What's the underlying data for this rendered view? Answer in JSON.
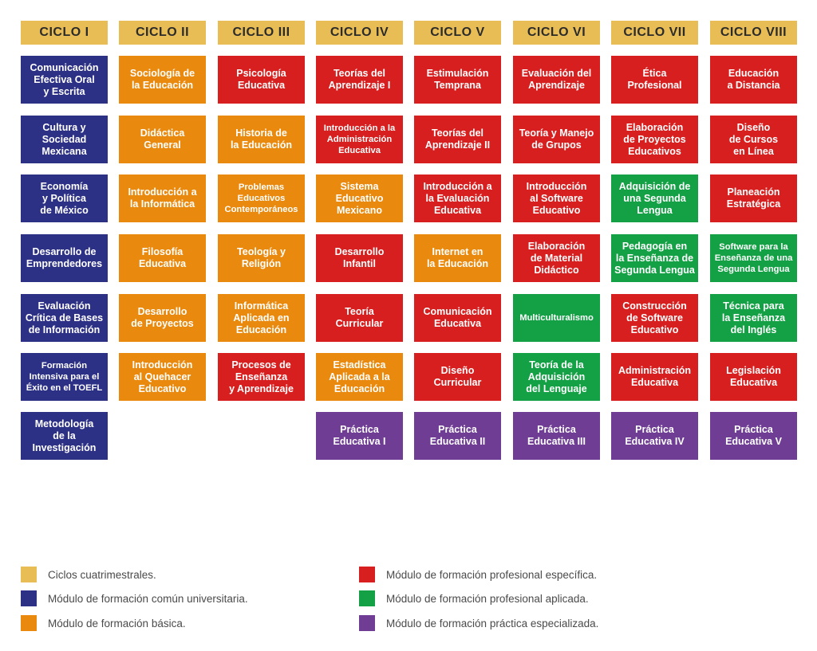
{
  "colors": {
    "ciclos": "#E9BD55",
    "comun": "#2D3185",
    "basica": "#E98A0E",
    "especifica": "#D81F1F",
    "aplicada": "#14A045",
    "practica": "#6F3E94"
  },
  "columns": [
    {
      "header": "CICLO I",
      "cells": [
        {
          "text": "Comunicación\nEfectiva Oral\ny Escrita",
          "module": "comun"
        },
        {
          "text": "Cultura y\nSociedad\nMexicana",
          "module": "comun"
        },
        {
          "text": "Economía\ny Política\nde México",
          "module": "comun"
        },
        {
          "text": "Desarrollo de\nEmprendedores",
          "module": "comun"
        },
        {
          "text": "Evaluación\nCrítica de Bases\nde Información",
          "module": "comun"
        },
        {
          "text": "Formación\nIntensiva para el\nÉxito en el TOEFL",
          "module": "comun",
          "small": true
        },
        {
          "text": "Metodología\nde la\nInvestigación",
          "module": "comun"
        }
      ]
    },
    {
      "header": "CICLO II",
      "cells": [
        {
          "text": "Sociología de\nla Educación",
          "module": "basica"
        },
        {
          "text": "Didáctica\nGeneral",
          "module": "basica"
        },
        {
          "text": "Introducción a\nla Informática",
          "module": "basica"
        },
        {
          "text": "Filosofía\nEducativa",
          "module": "basica"
        },
        {
          "text": "Desarrollo\nde Proyectos",
          "module": "basica"
        },
        {
          "text": "Introducción\nal Quehacer\nEducativo",
          "module": "basica"
        }
      ]
    },
    {
      "header": "CICLO III",
      "cells": [
        {
          "text": "Psicología\nEducativa",
          "module": "especifica"
        },
        {
          "text": "Historia de\nla Educación",
          "module": "basica"
        },
        {
          "text": "Problemas\nEducativos\nContemporáneos",
          "module": "basica",
          "small": true
        },
        {
          "text": "Teología y\nReligión",
          "module": "basica"
        },
        {
          "text": "Informática\nAplicada en\nEducación",
          "module": "basica"
        },
        {
          "text": "Procesos de\nEnseñanza\ny Aprendizaje",
          "module": "especifica"
        }
      ]
    },
    {
      "header": "CICLO IV",
      "cells": [
        {
          "text": "Teorías del\nAprendizaje I",
          "module": "especifica"
        },
        {
          "text": "Introducción a la\nAdministración\nEducativa",
          "module": "especifica",
          "small": true
        },
        {
          "text": "Sistema\nEducativo\nMexicano",
          "module": "basica"
        },
        {
          "text": "Desarrollo\nInfantil",
          "module": "especifica"
        },
        {
          "text": "Teoría\nCurricular",
          "module": "especifica"
        },
        {
          "text": "Estadística\nAplicada a la\nEducación",
          "module": "basica"
        },
        {
          "text": "Práctica\nEducativa I",
          "module": "practica"
        }
      ]
    },
    {
      "header": "CICLO V",
      "cells": [
        {
          "text": "Estimulación\nTemprana",
          "module": "especifica"
        },
        {
          "text": "Teorías del\nAprendizaje II",
          "module": "especifica"
        },
        {
          "text": "Introducción a\nla Evaluación\nEducativa",
          "module": "especifica"
        },
        {
          "text": "Internet en\nla Educación",
          "module": "basica"
        },
        {
          "text": "Comunicación\nEducativa",
          "module": "especifica"
        },
        {
          "text": "Diseño\nCurricular",
          "module": "especifica"
        },
        {
          "text": "Práctica\nEducativa II",
          "module": "practica"
        }
      ]
    },
    {
      "header": "CICLO VI",
      "cells": [
        {
          "text": "Evaluación del\nAprendizaje",
          "module": "especifica"
        },
        {
          "text": "Teoría y Manejo\nde Grupos",
          "module": "especifica"
        },
        {
          "text": "Introducción\nal Software\nEducativo",
          "module": "especifica"
        },
        {
          "text": "Elaboración\nde Material\nDidáctico",
          "module": "especifica"
        },
        {
          "text": "Multiculturalismo",
          "module": "aplicada",
          "small": true
        },
        {
          "text": "Teoría de la\nAdquisición\ndel Lenguaje",
          "module": "aplicada"
        },
        {
          "text": "Práctica\nEducativa III",
          "module": "practica"
        }
      ]
    },
    {
      "header": "CICLO VII",
      "cells": [
        {
          "text": "Ética\nProfesional",
          "module": "especifica"
        },
        {
          "text": "Elaboración\nde Proyectos\nEducativos",
          "module": "especifica"
        },
        {
          "text": "Adquisición de\nuna Segunda\nLengua",
          "module": "aplicada"
        },
        {
          "text": "Pedagogía en\nla Enseñanza de\nSegunda Lengua",
          "module": "aplicada"
        },
        {
          "text": "Construcción\nde Software\nEducativo",
          "module": "especifica"
        },
        {
          "text": "Administración\nEducativa",
          "module": "especifica"
        },
        {
          "text": "Práctica\nEducativa IV",
          "module": "practica"
        }
      ]
    },
    {
      "header": "CICLO VIII",
      "cells": [
        {
          "text": "Educación\na Distancia",
          "module": "especifica"
        },
        {
          "text": "Diseño\nde Cursos\nen Línea",
          "module": "especifica"
        },
        {
          "text": "Planeación\nEstratégica",
          "module": "especifica"
        },
        {
          "text": "Software para la\nEnseñanza de una\nSegunda Lengua",
          "module": "aplicada",
          "small": true
        },
        {
          "text": "Técnica para\nla Enseñanza\ndel Inglés",
          "module": "aplicada"
        },
        {
          "text": "Legislación\nEducativa",
          "module": "especifica"
        },
        {
          "text": "Práctica\nEducativa V",
          "module": "practica"
        }
      ]
    }
  ],
  "legend": [
    {
      "label": "Ciclos cuatrimestrales.",
      "module": "ciclos"
    },
    {
      "label": "Módulo de formación común universitaria.",
      "module": "comun"
    },
    {
      "label": "Módulo de formación básica.",
      "module": "basica"
    },
    {
      "label": "Módulo de formación profesional específica.",
      "module": "especifica"
    },
    {
      "label": "Módulo de formación profesional aplicada.",
      "module": "aplicada"
    },
    {
      "label": "Módulo de formación práctica especializada.",
      "module": "practica"
    }
  ]
}
